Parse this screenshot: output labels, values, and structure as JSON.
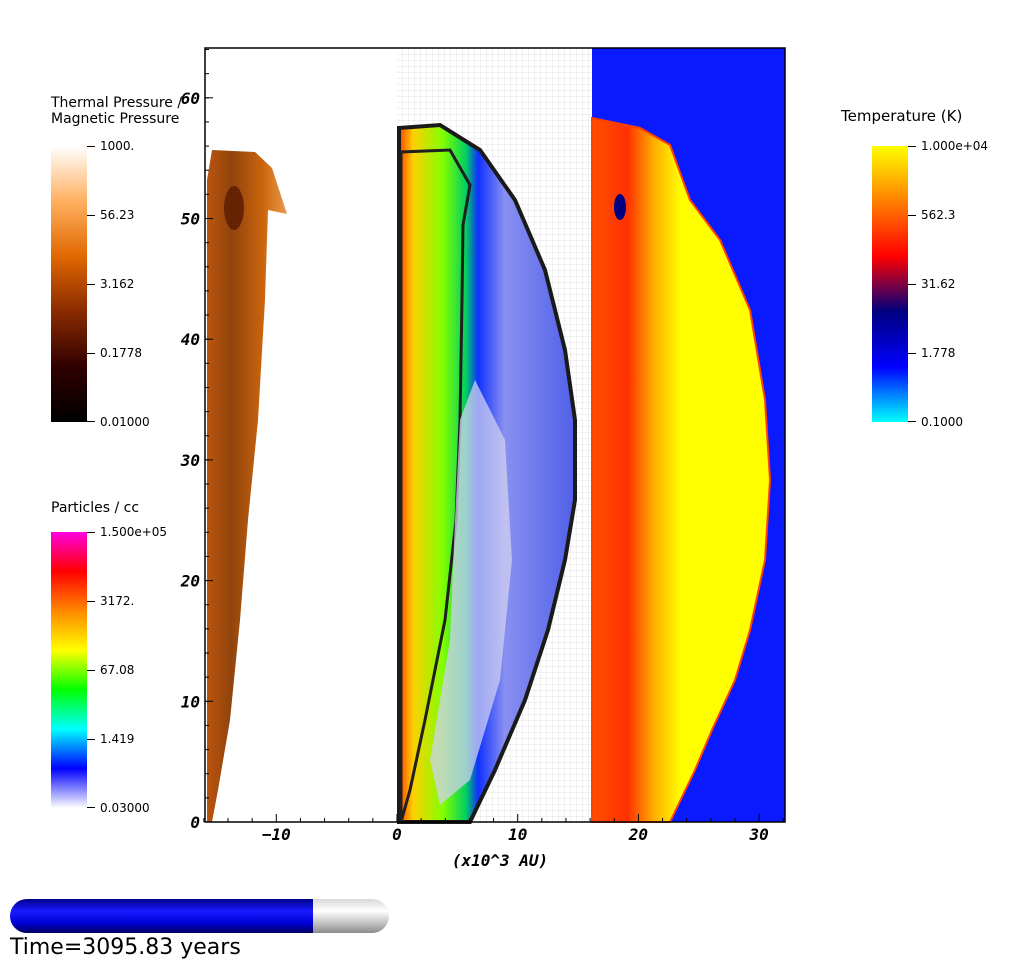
{
  "legends": {
    "pressure": {
      "title_line1": "Thermal Pressure /",
      "title_line2": "Magnetic Pressure",
      "ticks": [
        "1000.",
        "56.23",
        "3.162",
        "0.1778",
        "0.01000"
      ],
      "colors": [
        "#ffffff",
        "#ffb060",
        "#e06800",
        "#8a2a00",
        "#300000",
        "#000000"
      ]
    },
    "density": {
      "title": "Particles / cc",
      "ticks": [
        "1.500e+05",
        "3172.",
        "67.08",
        "1.419",
        "0.03000"
      ],
      "colors": [
        "#ff00e0",
        "#ff0000",
        "#ff8800",
        "#ffff00",
        "#00ff00",
        "#00ffff",
        "#0000ff",
        "#ffffff"
      ]
    },
    "temperature": {
      "title": "Temperature (K)",
      "ticks": [
        "1.000e+04",
        "562.3",
        "31.62",
        "1.778",
        "0.1000"
      ],
      "colors": [
        "#ffff00",
        "#ff8000",
        "#ff0000",
        "#000080",
        "#0000ff",
        "#00ffff"
      ]
    }
  },
  "plot": {
    "x_tick_labels": [
      "−10",
      "0",
      "10",
      "20",
      "30"
    ],
    "y_tick_labels": [
      "0",
      "10",
      "20",
      "30",
      "40",
      "50",
      "60"
    ],
    "xlabel": "(x10^3 AU)",
    "background_color": "#0a1aff"
  },
  "progress": {
    "fraction": 0.8
  },
  "time": "Time=3095.83 years"
}
